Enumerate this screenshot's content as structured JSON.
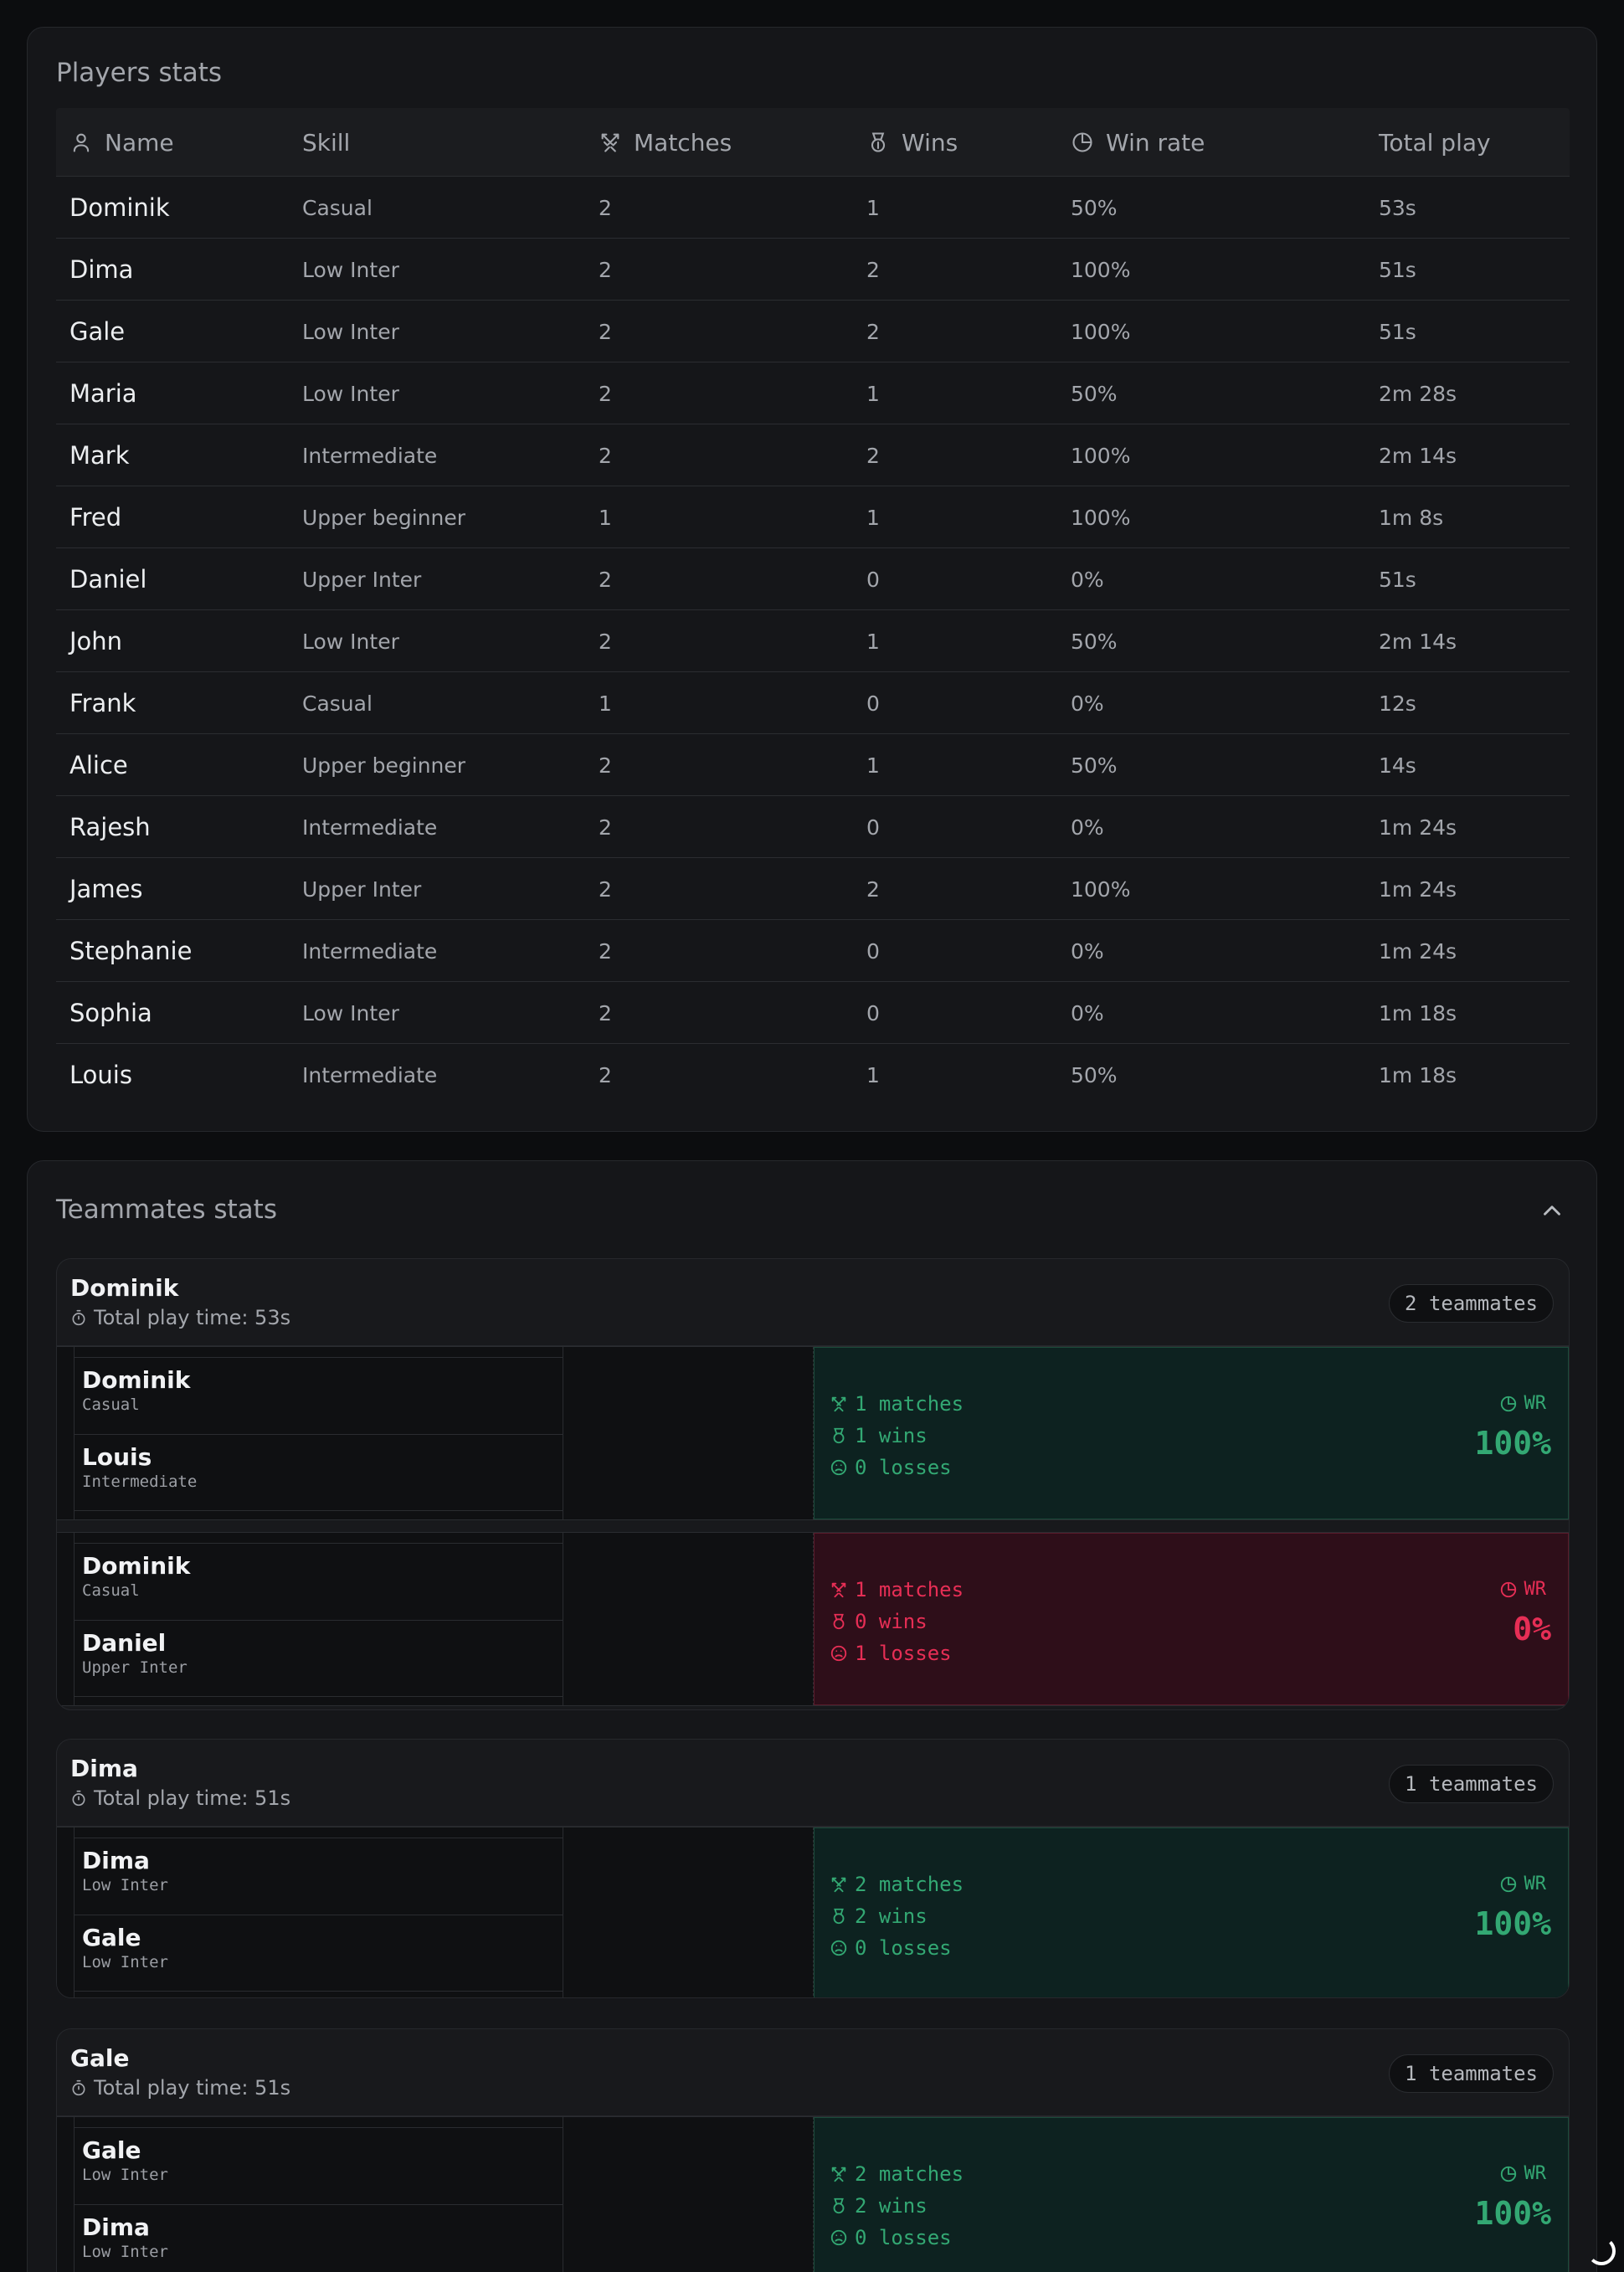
{
  "players_stats": {
    "title": "Players stats",
    "columns": [
      {
        "label": "Name",
        "icon": "user-icon"
      },
      {
        "label": "Skill",
        "icon": ""
      },
      {
        "label": "Matches",
        "icon": "swords-icon"
      },
      {
        "label": "Wins",
        "icon": "medal-icon"
      },
      {
        "label": "Win rate",
        "icon": "pie-chart-icon"
      },
      {
        "label": "Total play",
        "icon": ""
      }
    ],
    "rows": [
      {
        "name": "Dominik",
        "skill": "Casual",
        "matches": "2",
        "wins": "1",
        "win_rate": "50%",
        "total_play": "53s"
      },
      {
        "name": "Dima",
        "skill": "Low Inter",
        "matches": "2",
        "wins": "2",
        "win_rate": "100%",
        "total_play": "51s"
      },
      {
        "name": "Gale",
        "skill": "Low Inter",
        "matches": "2",
        "wins": "2",
        "win_rate": "100%",
        "total_play": "51s"
      },
      {
        "name": "Maria",
        "skill": "Low Inter",
        "matches": "2",
        "wins": "1",
        "win_rate": "50%",
        "total_play": "2m 28s"
      },
      {
        "name": "Mark",
        "skill": "Intermediate",
        "matches": "2",
        "wins": "2",
        "win_rate": "100%",
        "total_play": "2m 14s"
      },
      {
        "name": "Fred",
        "skill": "Upper beginner",
        "matches": "1",
        "wins": "1",
        "win_rate": "100%",
        "total_play": "1m 8s"
      },
      {
        "name": "Daniel",
        "skill": "Upper Inter",
        "matches": "2",
        "wins": "0",
        "win_rate": "0%",
        "total_play": "51s"
      },
      {
        "name": "John",
        "skill": "Low Inter",
        "matches": "2",
        "wins": "1",
        "win_rate": "50%",
        "total_play": "2m 14s"
      },
      {
        "name": "Frank",
        "skill": "Casual",
        "matches": "1",
        "wins": "0",
        "win_rate": "0%",
        "total_play": "12s"
      },
      {
        "name": "Alice",
        "skill": "Upper beginner",
        "matches": "2",
        "wins": "1",
        "win_rate": "50%",
        "total_play": "14s"
      },
      {
        "name": "Rajesh",
        "skill": "Intermediate",
        "matches": "2",
        "wins": "0",
        "win_rate": "0%",
        "total_play": "1m 24s"
      },
      {
        "name": "James",
        "skill": "Upper Inter",
        "matches": "2",
        "wins": "2",
        "win_rate": "100%",
        "total_play": "1m 24s"
      },
      {
        "name": "Stephanie",
        "skill": "Intermediate",
        "matches": "2",
        "wins": "0",
        "win_rate": "0%",
        "total_play": "1m 24s"
      },
      {
        "name": "Sophia",
        "skill": "Low Inter",
        "matches": "2",
        "wins": "0",
        "win_rate": "0%",
        "total_play": "1m 18s"
      },
      {
        "name": "Louis",
        "skill": "Intermediate",
        "matches": "2",
        "wins": "1",
        "win_rate": "50%",
        "total_play": "1m 18s"
      }
    ]
  },
  "teammates_stats": {
    "title": "Teammates stats",
    "toggle_icon": "chevron-up-icon",
    "groups": [
      {
        "player": "Dominik",
        "total_play": "Total play time: 53s",
        "badge": "2 teammates",
        "pairs": [
          {
            "a_name": "Dominik",
            "a_skill": "Casual",
            "b_name": "Louis",
            "b_skill": "Intermediate",
            "matches": "1 matches",
            "wins": "1 wins",
            "losses": "0 losses",
            "wr_label": "WR",
            "wr": "100%",
            "result": "win"
          },
          {
            "a_name": "Dominik",
            "a_skill": "Casual",
            "b_name": "Daniel",
            "b_skill": "Upper Inter",
            "matches": "1 matches",
            "wins": "0 wins",
            "losses": "1 losses",
            "wr_label": "WR",
            "wr": "0%",
            "result": "loss"
          }
        ]
      },
      {
        "player": "Dima",
        "total_play": "Total play time: 51s",
        "badge": "1 teammates",
        "pairs": [
          {
            "a_name": "Dima",
            "a_skill": "Low Inter",
            "b_name": "Gale",
            "b_skill": "Low Inter",
            "matches": "2 matches",
            "wins": "2 wins",
            "losses": "0 losses",
            "wr_label": "WR",
            "wr": "100%",
            "result": "win"
          }
        ]
      },
      {
        "player": "Gale",
        "total_play": "Total play time: 51s",
        "badge": "1 teammates",
        "pairs": [
          {
            "a_name": "Gale",
            "a_skill": "Low Inter",
            "b_name": "Dima",
            "b_skill": "Low Inter",
            "matches": "2 matches",
            "wins": "2 wins",
            "losses": "0 losses",
            "wr_label": "WR",
            "wr": "100%",
            "result": "win"
          }
        ]
      }
    ]
  },
  "colors": {
    "win": "#33a873",
    "loss": "#e62e55",
    "background": "#0c0d0f",
    "card": "#151619"
  }
}
